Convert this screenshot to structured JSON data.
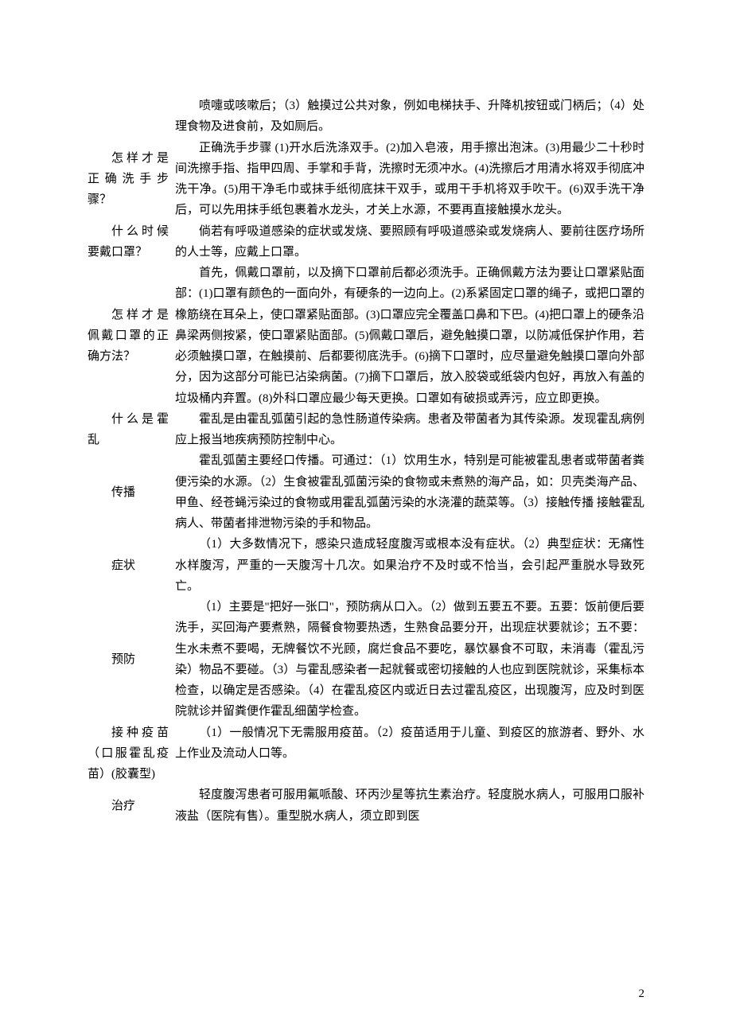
{
  "sections": [
    {
      "label": "",
      "paragraphs": [
        "喷嚏或咳嗽后；（3）触摸过公共对象，例如电梯扶手、升降机按钮或门柄后；（4）处理食物及进食前，及如厕后。"
      ]
    },
    {
      "label": "怎样才是正确洗手步骤？",
      "paragraphs": [
        "正确洗手步骤 (1)开水后洗涤双手。(2)加入皂液，用手擦出泡沫。(3)用最少二十秒时间洗擦手指、指甲四周、手掌和手背，洗擦时无须冲水。(4)洗擦后才用清水将双手彻底冲洗干净。(5)用干净毛巾或抹手纸彻底抹干双手，或用干手机将双手吹干。(6)双手洗干净后，可以先用抹手纸包裹着水龙头，才关上水源，不要再直接触摸水龙头。"
      ]
    },
    {
      "label": "什么时候要戴口罩？",
      "paragraphs": [
        "倘若有呼吸道感染的症状或发烧、要照顾有呼吸道感染或发烧病人、要前往医疗场所的人士等，应戴上口罩。"
      ]
    },
    {
      "label": "怎样才是佩戴口罩的正确方法？",
      "paragraphs": [
        "首先，佩戴口罩前，以及摘下口罩前后都必须洗手。正确佩戴方法为要让口罩紧贴面部：(1)口罩有颜色的一面向外，有硬条的一边向上。(2)系紧固定口罩的绳子，或把口罩的橡筋绕在耳朵上，使口罩紧贴面部。(3)口罩应完全覆盖口鼻和下巴。(4)把口罩上的硬条沿鼻梁两侧按紧，使口罩紧贴面部。(5)佩戴口罩后，避免触摸口罩，以防减低保护作用，若必须触摸口罩，在触摸前、后都要彻底洗手。(6)摘下口罩时，应尽量避免触摸口罩向外部分，因为这部分可能已沾染病菌。(7)摘下口罩后，放入胶袋或纸袋内包好，再放入有盖的垃圾桶内弃置。(8)外科口罩应最少每天更换。口罩如有破损或弄污，应立即更换。"
      ]
    },
    {
      "label": "什么是霍乱",
      "paragraphs": [
        "霍乱是由霍乱弧菌引起的急性肠道传染病。患者及带菌者为其传染源。发现霍乱病例应上报当地疾病预防控制中心。"
      ]
    },
    {
      "label": "传播",
      "paragraphs": [
        "霍乱弧菌主要经口传播。可通过：（1）饮用生水，特别是可能被霍乱患者或带菌者粪便污染的水源。（2）生食被霍乱弧菌污染的食物或未煮熟的海产品，如：贝壳类海产品、甲鱼、经苍蝇污染过的食物或用霍乱弧菌污染的水浇灌的蔬菜等。（3）接触传播 接触霍乱病人、带菌者排泄物污染的手和物品。"
      ]
    },
    {
      "label": "症状",
      "paragraphs": [
        "（1）大多数情况下，感染只造成轻度腹泻或根本没有症状。（2）典型症状：无痛性水样腹泻，严重的一天腹泻十几次。如果治疗不及时或不恰当，会引起严重脱水导致死亡。"
      ]
    },
    {
      "label": "预防",
      "paragraphs": [
        "（1）主要是\"把好一张口\"，预防病从口入。（2）做到五要五不要。五要：饭前便后要洗手，买回海产要煮熟，隔餐食物要热透，生熟食品要分开，出现症状要就诊；五不要：生水未煮不要喝，无牌餐饮不光顾，腐烂食品不要吃，暴饮暴食不可取，未消毒（霍乱污染）物品不要碰。（3）与霍乱感染者一起就餐或密切接触的人也应到医院就诊，采集标本检查，以确定是否感染。（4）在霍乱疫区内或近日去过霍乱疫区，出现腹泻，应及时到医院就诊并留粪便作霍乱细菌学检查。"
      ]
    },
    {
      "label": "接种疫苗（口服霍乱疫苗）(胶囊型)",
      "paragraphs": [
        "（1）一般情况下无需服用疫苗。（2）疫苗适用于儿童、到疫区的旅游者、野外、水上作业及流动人口等。"
      ]
    },
    {
      "label": "治疗",
      "paragraphs": [
        "轻度腹泻患者可服用氟哌酸、环丙沙星等抗生素治疗。轻度脱水病人，可服用口服补液盐（医院有售）。重型脱水病人，须立即到医"
      ]
    }
  ],
  "pageNumber": "2"
}
